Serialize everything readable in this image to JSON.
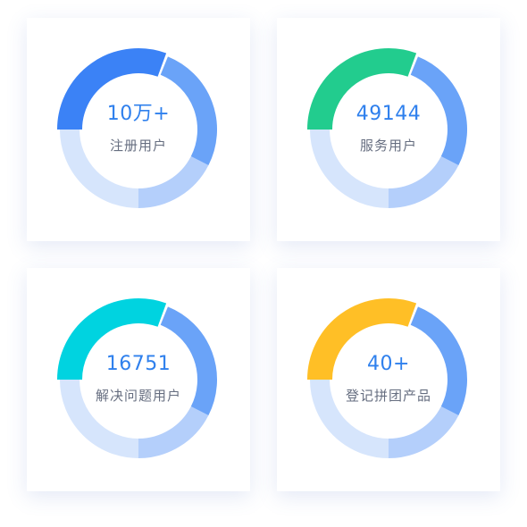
{
  "colors": {
    "ring_blue": "#6aa3f8",
    "ring_mid": "#b4cffb",
    "ring_light": "#d6e5fc"
  },
  "cards": [
    {
      "value": "10万+",
      "label": "注册用户",
      "accent": "#3b82f6"
    },
    {
      "value": "49144",
      "label": "服务用户",
      "accent": "#22cc8e"
    },
    {
      "value": "16751",
      "label": "解决问题用户",
      "accent": "#00d3e0"
    },
    {
      "value": "40+",
      "label": "登记拼团产品",
      "accent": "#ffbf26"
    }
  ]
}
